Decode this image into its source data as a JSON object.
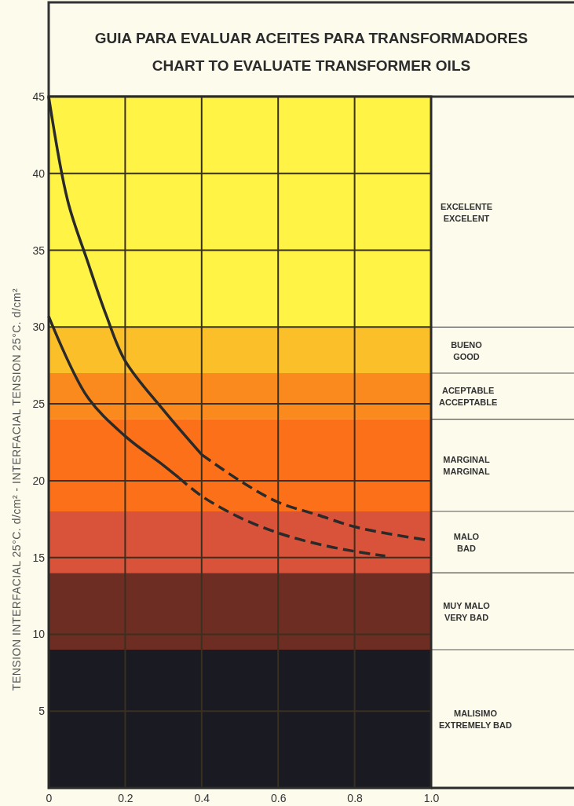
{
  "chart_data": {
    "type": "line",
    "title": "GUIA PARA EVALUAR ACEITES PARA TRANSFORMADORES",
    "subtitle": "CHART TO EVALUATE TRANSFORMER OILS",
    "ylabel": "TENSION INTERFACIAL 25°C. d/cm² - INTERFACIAL TENSION 25°C. d/cm²",
    "xlim": [
      0,
      1
    ],
    "xticks": [
      0,
      0.2,
      0.4,
      0.6,
      0.8,
      {
        "value": 1,
        "label": "1.0"
      }
    ],
    "ylim": [
      0,
      45
    ],
    "yticks": [
      5,
      10,
      15,
      20,
      25,
      30,
      35,
      40,
      45
    ],
    "grid": true,
    "marker": "none",
    "series": [
      {
        "color": "#2a2a2a",
        "line_style": "solid",
        "x": [
          0,
          0.05,
          0.1,
          0.15,
          0.2,
          0.3,
          0.4
        ],
        "values": [
          45,
          38.2,
          34.4,
          30.8,
          27.8,
          24.6,
          21.7
        ]
      },
      {
        "color": "#2a2a2a",
        "line_style": "dashed",
        "x": [
          0.4,
          0.5,
          0.6,
          0.7,
          0.8,
          0.9,
          1
        ],
        "values": [
          21.7,
          20,
          18.6,
          17.8,
          17,
          16.5,
          16.1
        ]
      },
      {
        "color": "#2a2a2a",
        "line_style": "solid",
        "x": [
          0,
          0.1,
          0.2,
          0.3,
          0.34
        ],
        "values": [
          30.7,
          25.5,
          22.9,
          21,
          20.2
        ]
      },
      {
        "color": "#2a2a2a",
        "line_style": "dashed",
        "x": [
          0.34,
          0.4,
          0.5,
          0.6,
          0.7,
          0.8,
          0.88
        ],
        "values": [
          20.2,
          19,
          17.6,
          16.6,
          15.9,
          15.4,
          15.1
        ]
      }
    ],
    "bands": [
      {
        "axis": "y",
        "from": 30,
        "to": 45,
        "label": "EXCELENTE\nEXCELENT",
        "color": "#fff345"
      },
      {
        "axis": "y",
        "from": 27,
        "to": 30,
        "label": "BUENO\nGOOD",
        "color": "#fbbf2a"
      },
      {
        "axis": "y",
        "from": 24,
        "to": 27,
        "label": "ACEPTABLE\nACCEPTABLE",
        "color": "#fb8a1e"
      },
      {
        "axis": "y",
        "from": 18,
        "to": 24,
        "label": "MARGINAL\nMARGINAL",
        "color": "#fb7018"
      },
      {
        "axis": "y",
        "from": 14,
        "to": 18,
        "label": "MALO\nBAD",
        "color": "#d9523a"
      },
      {
        "axis": "y",
        "from": 9,
        "to": 14,
        "label": "MUY MALO\nVERY BAD",
        "color": "#6e2d22"
      },
      {
        "axis": "y",
        "from": 0,
        "to": 9,
        "label": "MALISIMO\nEXTREMELY BAD",
        "color": "#1a1a22"
      }
    ]
  }
}
